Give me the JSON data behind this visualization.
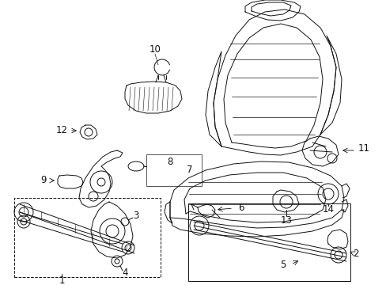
{
  "bg_color": "#ffffff",
  "line_color": "#111111",
  "fig_width": 4.89,
  "fig_height": 3.6,
  "dpi": 100,
  "label_fs": 8.5,
  "lw": 0.7
}
